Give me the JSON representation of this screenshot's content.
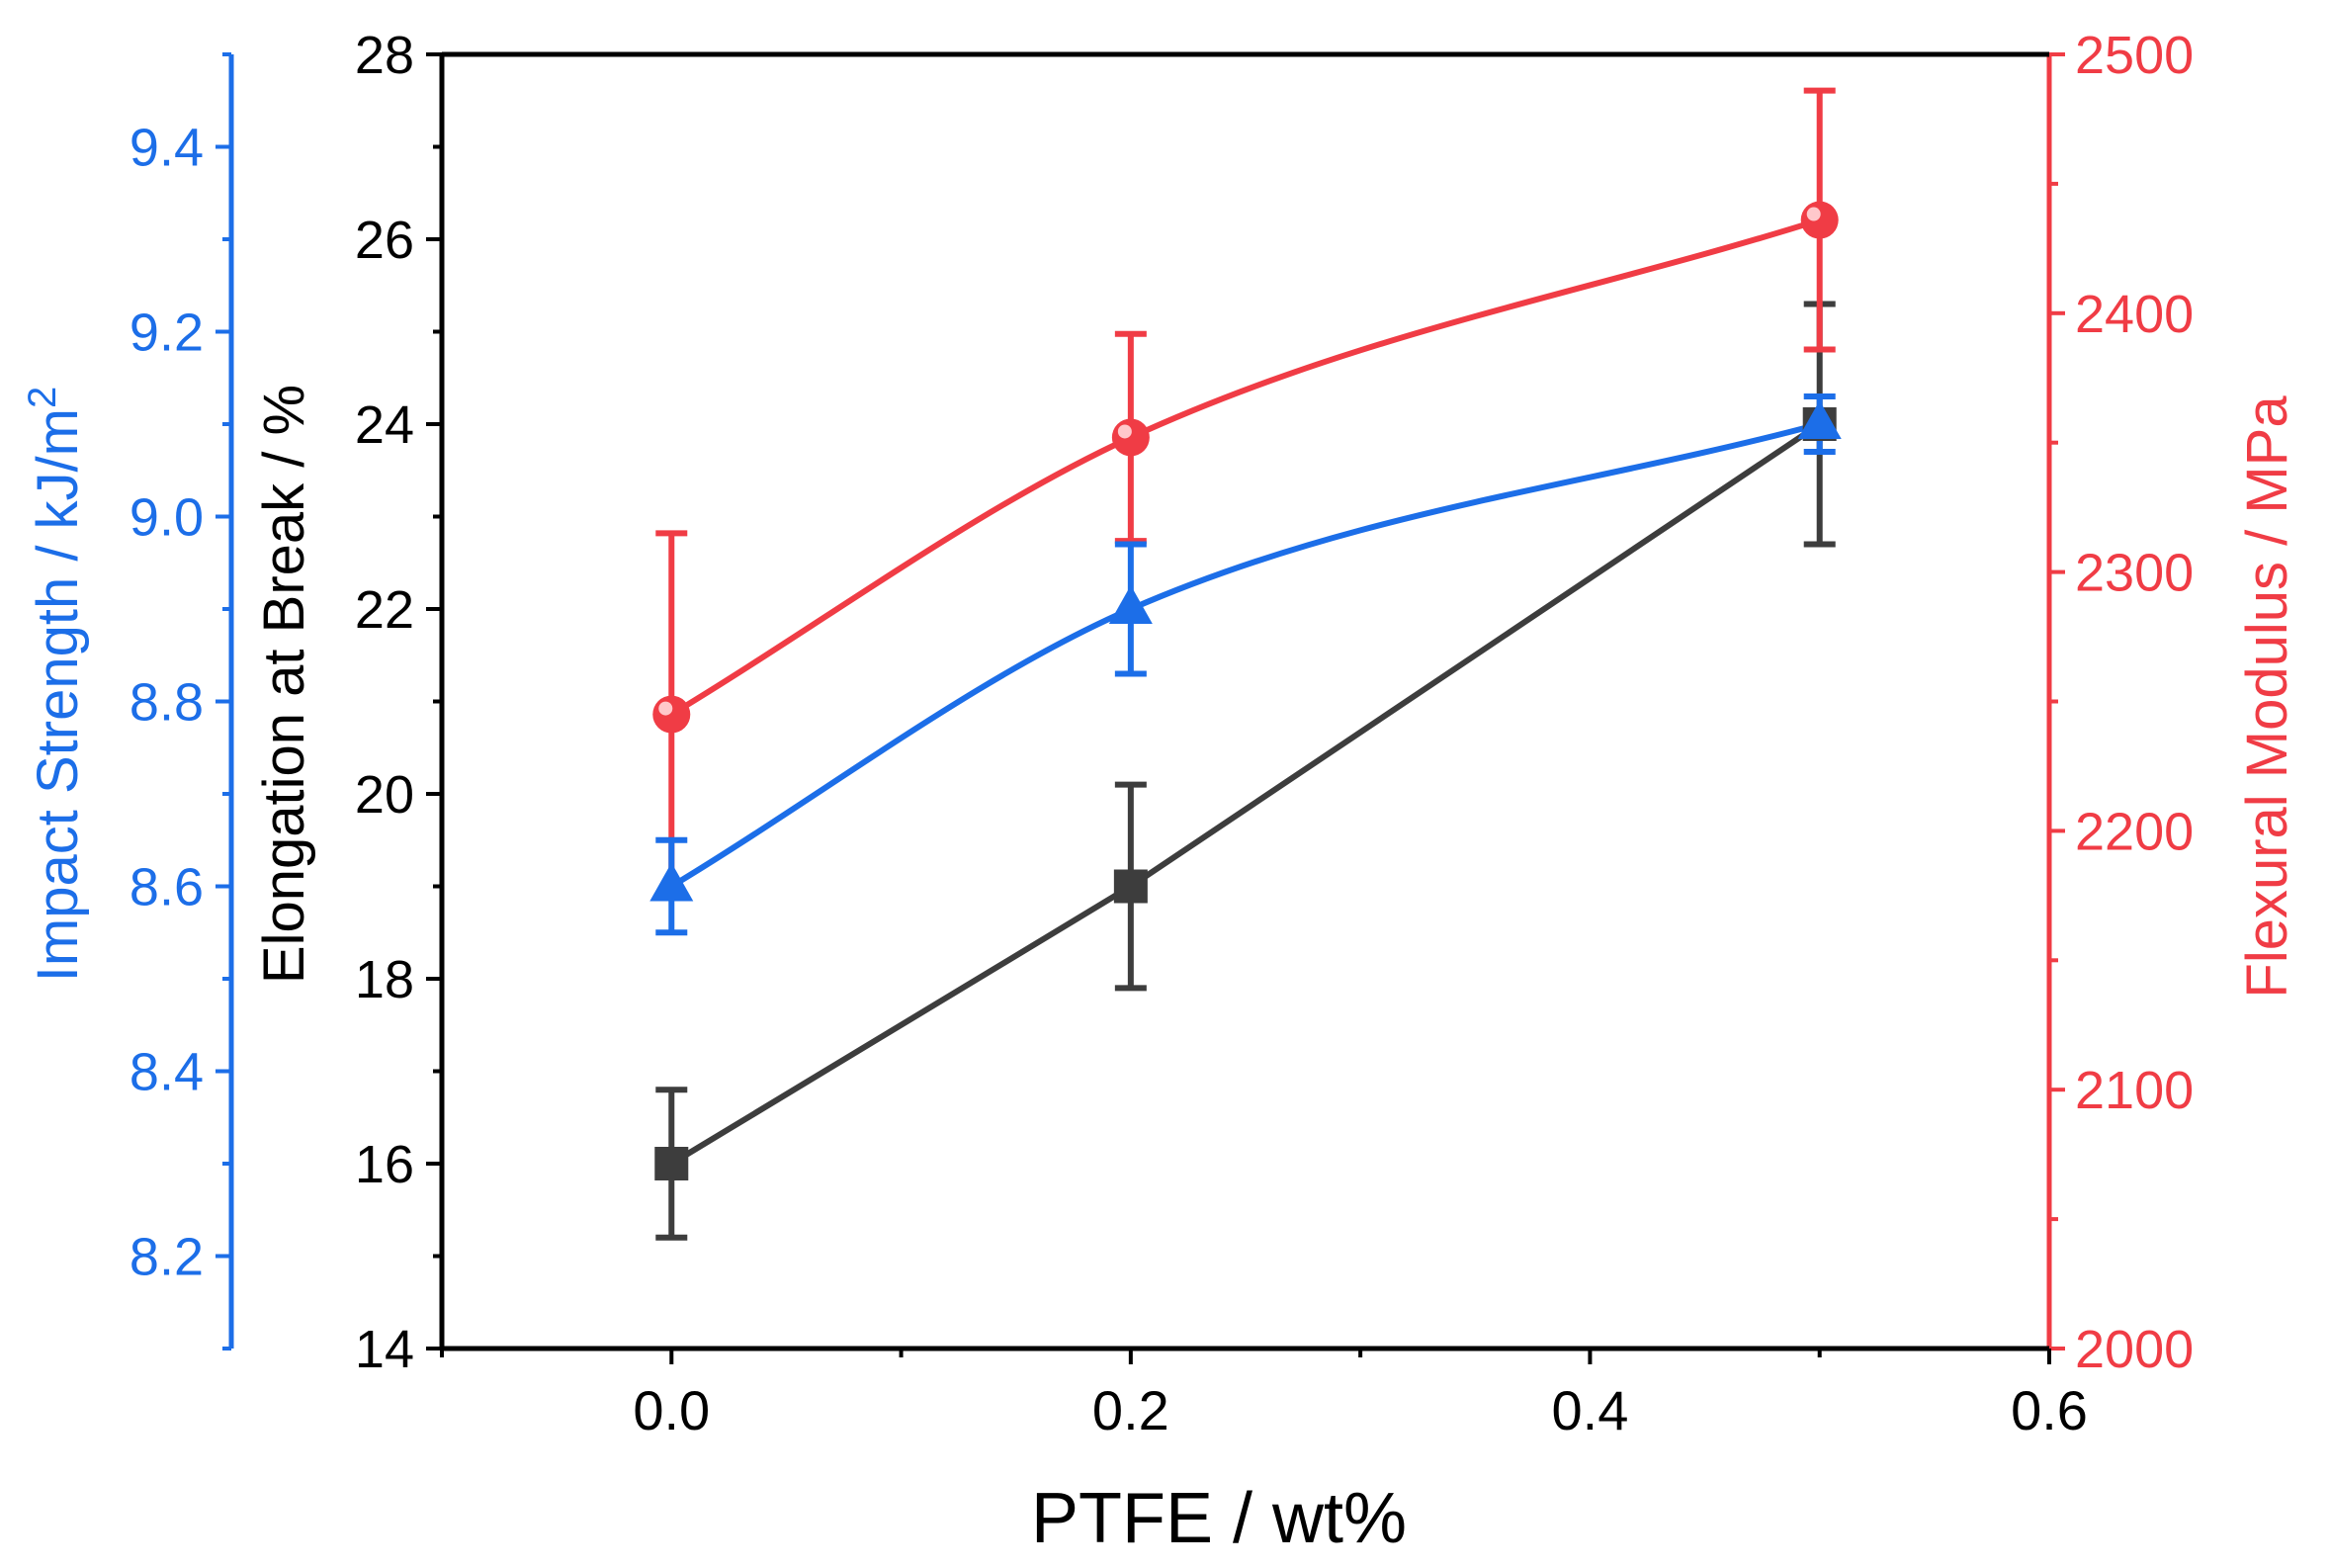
{
  "chart_data": {
    "type": "line",
    "xlabel": "PTFE / wt%",
    "xlim": [
      -0.1,
      0.6
    ],
    "xticks": [
      0.0,
      0.2,
      0.4,
      0.6
    ],
    "xtick_labels": [
      "0.0",
      "0.2",
      "0.4",
      "0.6"
    ],
    "xminor": [
      -0.1,
      0.1,
      0.3,
      0.5
    ],
    "axes": {
      "left_outer": {
        "label": "Impact Strength / kJ/m",
        "label_superscript": "2",
        "color": "#1c6ee8",
        "lim": [
          8.1,
          9.5
        ],
        "ticks": [
          8.2,
          8.4,
          8.6,
          8.8,
          9.0,
          9.2,
          9.4
        ],
        "tick_labels": [
          "8.2",
          "8.4",
          "8.6",
          "8.8",
          "9.0",
          "9.2",
          "9.4"
        ],
        "minor": [
          8.1,
          8.3,
          8.5,
          8.7,
          8.9,
          9.1,
          9.3,
          9.5
        ]
      },
      "left": {
        "label": "Elongation at Break / %",
        "color": "#000000",
        "lim": [
          14,
          28
        ],
        "ticks": [
          14,
          16,
          18,
          20,
          22,
          24,
          26,
          28
        ],
        "tick_labels": [
          "14",
          "16",
          "18",
          "20",
          "22",
          "24",
          "26",
          "28"
        ],
        "minor": [
          15,
          17,
          19,
          21,
          23,
          25,
          27
        ]
      },
      "right": {
        "label": "Flexural Modulus / MPa",
        "color": "#f03c45",
        "lim": [
          2000,
          2500
        ],
        "ticks": [
          2000,
          2100,
          2200,
          2300,
          2400,
          2500
        ],
        "tick_labels": [
          "2000",
          "2100",
          "2200",
          "2300",
          "2400",
          "2500"
        ],
        "minor": [
          2050,
          2150,
          2250,
          2350,
          2450
        ]
      }
    },
    "series": [
      {
        "name": "Elongation at Break",
        "axis": "left",
        "color": "#3d3d3d",
        "marker": "square",
        "smooth": false,
        "x": [
          0.0,
          0.2,
          0.5
        ],
        "y": [
          16.0,
          19.0,
          24.0
        ],
        "err": [
          0.8,
          1.1,
          1.3
        ]
      },
      {
        "name": "Impact Strength",
        "axis": "left_outer",
        "color": "#1c6ee8",
        "marker": "triangle",
        "smooth": true,
        "x": [
          0.0,
          0.2,
          0.5
        ],
        "y": [
          8.6,
          8.9,
          9.1
        ],
        "err": [
          0.05,
          0.07,
          0.03
        ]
      },
      {
        "name": "Flexural Modulus",
        "axis": "right",
        "color": "#f03c45",
        "marker": "circle",
        "smooth": true,
        "x": [
          0.0,
          0.2,
          0.5
        ],
        "y": [
          2245,
          2352,
          2436
        ],
        "err": [
          70,
          40,
          50
        ]
      }
    ]
  }
}
